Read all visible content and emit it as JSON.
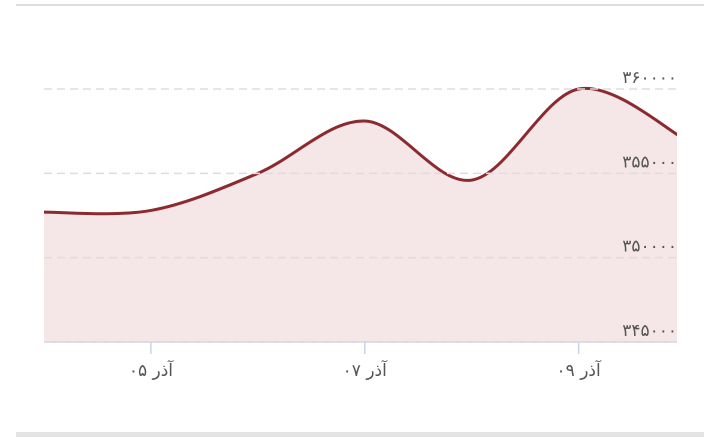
{
  "chart_data": {
    "type": "area",
    "x": [
      4,
      5,
      6,
      7,
      8,
      9,
      10
    ],
    "values": [
      352700,
      352800,
      355000,
      358100,
      354600,
      360000,
      357000
    ],
    "color": "#8b2a30",
    "fill": "#f5e6e8",
    "xlim": [
      4,
      9.92
    ],
    "xticks": [
      {
        "value": 5,
        "label": "۰۵ آذر"
      },
      {
        "value": 7,
        "label": "۰۷ آذر"
      },
      {
        "value": 9,
        "label": "۰۹ آذر"
      }
    ],
    "ylim": [
      345000,
      361000
    ],
    "yticks": [
      {
        "value": 345000,
        "label": "۳۴۵۰۰۰"
      },
      {
        "value": 350000,
        "label": "۳۵۰۰۰۰"
      },
      {
        "value": 355000,
        "label": "۳۵۵۰۰۰"
      },
      {
        "value": 360000,
        "label": "۳۶۰۰۰۰"
      }
    ],
    "grid": true
  }
}
